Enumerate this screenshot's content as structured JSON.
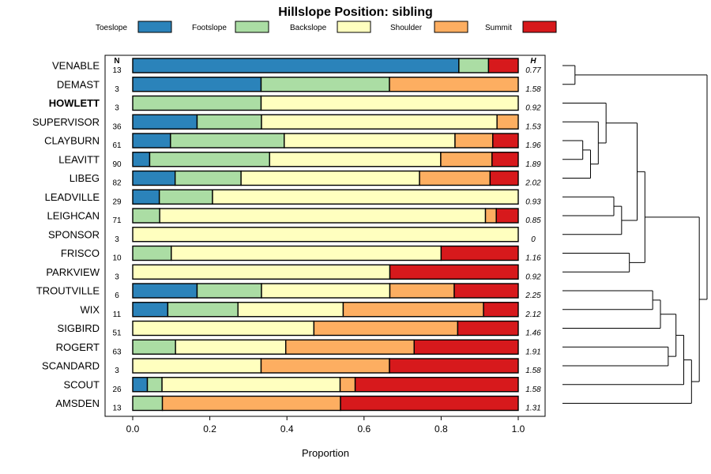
{
  "chart_data": {
    "type": "stacked-bar-horizontal",
    "title": "Hillslope Position: sibling",
    "xlabel": "Proportion",
    "xlim": [
      0,
      1
    ],
    "xticks": [
      "0.0",
      "0.2",
      "0.4",
      "0.6",
      "0.8",
      "1.0"
    ],
    "n_header": "N",
    "h_header": "H",
    "bold_category": "HOWLETT",
    "legend": [
      {
        "name": "Toeslope",
        "color": "#2b83ba"
      },
      {
        "name": "Footslope",
        "color": "#abdda4"
      },
      {
        "name": "Backslope",
        "color": "#ffffbf"
      },
      {
        "name": "Shoulder",
        "color": "#fdae61"
      },
      {
        "name": "Summit",
        "color": "#d7191c"
      }
    ],
    "categories": [
      "VENABLE",
      "DEMAST",
      "HOWLETT",
      "SUPERVISOR",
      "CLAYBURN",
      "LEAVITT",
      "LIBEG",
      "LEADVILLE",
      "LEIGHCAN",
      "SPONSOR",
      "FRISCO",
      "PARKVIEW",
      "TROUTVILLE",
      "WIX",
      "SIGBIRD",
      "ROGERT",
      "SCANDARD",
      "SCOUT",
      "AMSDEN"
    ],
    "n": [
      "13",
      "3",
      "3",
      "36",
      "61",
      "90",
      "82",
      "29",
      "71",
      "3",
      "10",
      "3",
      "6",
      "11",
      "51",
      "63",
      "3",
      "26",
      "13"
    ],
    "h": [
      "0.77",
      "1.58",
      "0.92",
      "1.53",
      "1.96",
      "1.89",
      "2.02",
      "0.93",
      "0.85",
      "0",
      "1.16",
      "0.92",
      "2.25",
      "2.12",
      "1.46",
      "1.91",
      "1.58",
      "1.58",
      "1.31"
    ],
    "proportions": [
      [
        0.846,
        0.077,
        0,
        0,
        0.077
      ],
      [
        0.333,
        0.333,
        0,
        0.334,
        0
      ],
      [
        0,
        0.333,
        0.667,
        0,
        0
      ],
      [
        0.167,
        0.167,
        0.611,
        0.055,
        0
      ],
      [
        0.098,
        0.295,
        0.443,
        0.098,
        0.066
      ],
      [
        0.044,
        0.311,
        0.444,
        0.133,
        0.068
      ],
      [
        0.11,
        0.171,
        0.463,
        0.183,
        0.073
      ],
      [
        0.069,
        0.138,
        0.793,
        0,
        0
      ],
      [
        0,
        0.07,
        0.845,
        0.028,
        0.057
      ],
      [
        0,
        0,
        1,
        0,
        0
      ],
      [
        0,
        0.1,
        0.7,
        0,
        0.2
      ],
      [
        0,
        0,
        0.667,
        0,
        0.333
      ],
      [
        0.167,
        0.167,
        0.333,
        0.167,
        0.166
      ],
      [
        0.091,
        0.182,
        0.273,
        0.364,
        0.09
      ],
      [
        0,
        0,
        0.47,
        0.373,
        0.157
      ],
      [
        0,
        0.111,
        0.286,
        0.333,
        0.27
      ],
      [
        0,
        0,
        0.333,
        0.333,
        0.334
      ],
      [
        0.038,
        0.038,
        0.462,
        0.039,
        0.423
      ],
      [
        0,
        0.077,
        0,
        0.462,
        0.461
      ]
    ],
    "dendrogram_merges": [
      [
        0,
        1
      ],
      [
        4,
        5
      ],
      [
        -2,
        6
      ],
      [
        -3,
        3
      ],
      [
        -4,
        2
      ],
      [
        7,
        8
      ],
      [
        -6,
        9
      ],
      [
        10,
        11
      ],
      [
        -5,
        -7
      ],
      [
        -9,
        -8
      ],
      [
        12,
        13
      ],
      [
        -11,
        14
      ],
      [
        15,
        16
      ],
      [
        -13,
        -12
      ],
      [
        -14,
        17
      ],
      [
        -15,
        18
      ],
      [
        -10,
        -16
      ],
      [
        -1,
        -17
      ]
    ]
  }
}
